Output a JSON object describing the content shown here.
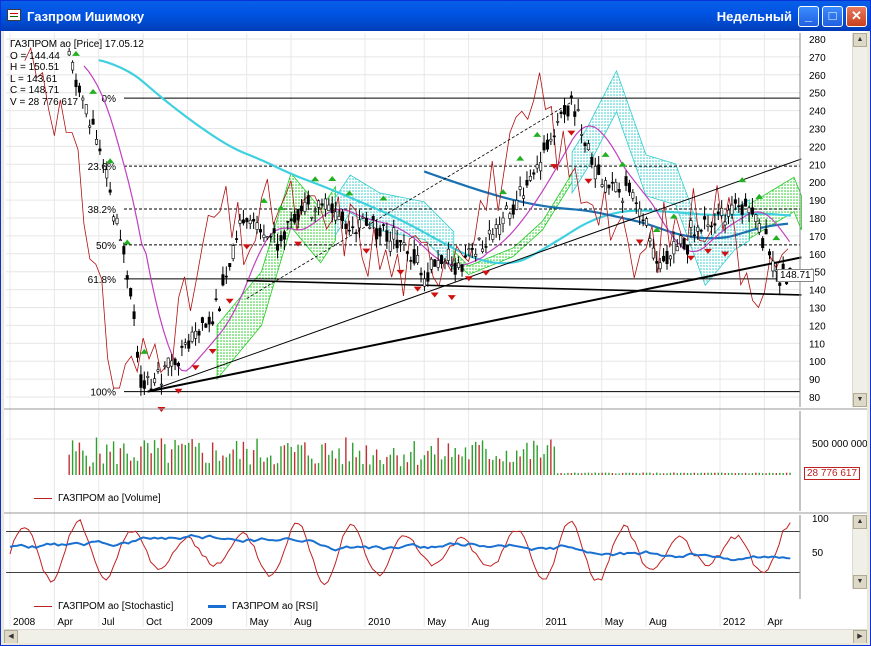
{
  "window": {
    "title": "Газпром Ишимоку",
    "period": "Недельный",
    "buttons": {
      "minimize": "_",
      "maximize": "□",
      "close": "✕"
    }
  },
  "colors": {
    "bull_candle": "#000000",
    "bear_candle": "#000000",
    "cloud": "#22cc22",
    "cloud_alt": "#33cccc",
    "ma_cyan": "#3fd0e0",
    "ma_blue": "#1a70b0",
    "tenkan": "#b01010",
    "kijun": "#c040c0",
    "arrow_up": "#22b022",
    "arrow_down": "#d01010",
    "volume_up": "#2ca02c",
    "volume_down": "#c03030",
    "stoch": "#c02020",
    "rsi": "#1a70d0"
  },
  "price_panel": {
    "readout": {
      "line1": "ГАЗПРОМ ао [Price]  17.05.12",
      "open": "O = 144.44",
      "high": "H = 150.51",
      "low": "L = 143.61",
      "close": "C = 148.71",
      "volume": "V = 28 776 617"
    },
    "current_price_label": "148.71",
    "fib_levels": [
      "0%",
      "23.6%",
      "38.2%",
      "50%",
      "61.8%",
      "100%"
    ]
  },
  "volume_panel": {
    "axis_label": "500 000 000",
    "current_label": "28 776 617",
    "legend": "ГАЗПРОМ ао [Volume]"
  },
  "osc_panel": {
    "legend_stoch": "ГАЗПРОМ ао [Stochastic]",
    "legend_rsi": "ГАЗПРОМ ао [RSI]",
    "y_ticks": [
      "100",
      "50"
    ]
  },
  "time_axis": {
    "labels": [
      "2008",
      "Apr",
      "Jul",
      "Oct",
      "2009",
      "May",
      "Aug",
      "2010",
      "May",
      "Aug",
      "2011",
      "May",
      "Aug",
      "2012",
      "Apr"
    ]
  },
  "chart_data": {
    "type": "line",
    "ylim": [
      80,
      280
    ],
    "y_ticks": [
      80,
      90,
      100,
      110,
      120,
      130,
      140,
      150,
      160,
      170,
      180,
      190,
      200,
      210,
      220,
      230,
      240,
      250,
      260,
      270,
      280
    ],
    "fib_prices": [
      247,
      209,
      185,
      165,
      146,
      83
    ],
    "close_path": [
      {
        "x": "2008-05",
        "y": 270
      },
      {
        "x": "2008-07",
        "y": 220
      },
      {
        "x": "2008-09",
        "y": 150
      },
      {
        "x": "2008-10",
        "y": 83
      },
      {
        "x": "2008-12",
        "y": 100
      },
      {
        "x": "2009-03",
        "y": 130
      },
      {
        "x": "2009-05",
        "y": 185
      },
      {
        "x": "2009-07",
        "y": 165
      },
      {
        "x": "2009-09",
        "y": 190
      },
      {
        "x": "2009-11",
        "y": 180
      },
      {
        "x": "2010-02",
        "y": 175
      },
      {
        "x": "2010-05",
        "y": 150
      },
      {
        "x": "2010-08",
        "y": 160
      },
      {
        "x": "2010-10",
        "y": 175
      },
      {
        "x": "2011-01",
        "y": 215
      },
      {
        "x": "2011-03",
        "y": 247
      },
      {
        "x": "2011-05",
        "y": 200
      },
      {
        "x": "2011-07",
        "y": 195
      },
      {
        "x": "2011-09",
        "y": 150
      },
      {
        "x": "2011-11",
        "y": 170
      },
      {
        "x": "2012-01",
        "y": 180
      },
      {
        "x": "2012-03",
        "y": 190
      },
      {
        "x": "2012-05",
        "y": 148.71
      }
    ]
  }
}
